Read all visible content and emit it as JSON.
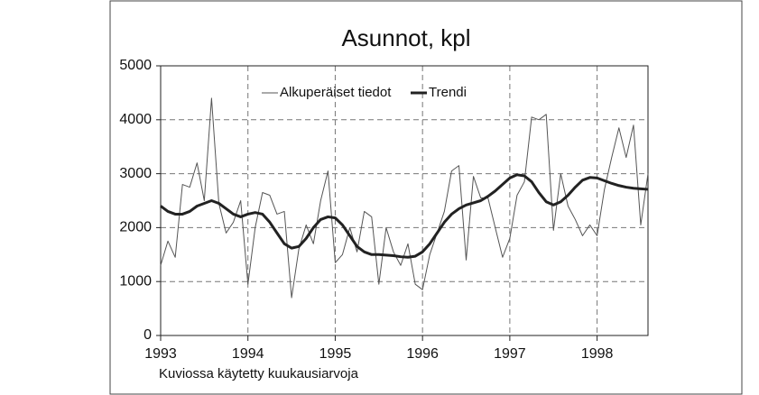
{
  "chart_data": {
    "type": "line",
    "title": "Asunnot, kpl",
    "note": "Kuviossa käytetty kuukausiarvoja",
    "x": [
      1993,
      1993.083,
      1993.167,
      1993.25,
      1993.333,
      1993.417,
      1993.5,
      1993.583,
      1993.667,
      1993.75,
      1993.833,
      1993.917,
      1994,
      1994.083,
      1994.167,
      1994.25,
      1994.333,
      1994.417,
      1994.5,
      1994.583,
      1994.667,
      1994.75,
      1994.833,
      1994.917,
      1995,
      1995.083,
      1995.167,
      1995.25,
      1995.333,
      1995.417,
      1995.5,
      1995.583,
      1995.667,
      1995.75,
      1995.833,
      1995.917,
      1996,
      1996.083,
      1996.167,
      1996.25,
      1996.333,
      1996.417,
      1996.5,
      1996.583,
      1996.667,
      1996.75,
      1996.833,
      1996.917,
      1997,
      1997.083,
      1997.167,
      1997.25,
      1997.333,
      1997.417,
      1997.5,
      1997.583,
      1997.667,
      1997.75,
      1997.833,
      1997.917,
      1998,
      1998.083,
      1998.167,
      1998.25,
      1998.333,
      1998.417,
      1998.5,
      1998.583
    ],
    "series": [
      {
        "name": "Alkuperäiset tiedot",
        "color": "#555555",
        "width": 1,
        "values": [
          1300,
          1750,
          1450,
          2800,
          2750,
          3200,
          2500,
          4400,
          2450,
          1900,
          2100,
          2500,
          950,
          2000,
          2650,
          2600,
          2250,
          2300,
          700,
          1600,
          2050,
          1700,
          2500,
          3050,
          1350,
          1500,
          2000,
          1550,
          2300,
          2200,
          950,
          2000,
          1550,
          1300,
          1700,
          950,
          850,
          1500,
          1900,
          2300,
          3050,
          3150,
          1400,
          2950,
          2550,
          2550,
          2000,
          1450,
          1800,
          2600,
          2850,
          4050,
          4000,
          4100,
          1950,
          3000,
          2400,
          2150,
          1850,
          2050,
          1850,
          2700,
          3300,
          3850,
          3300,
          3900,
          2050,
          3000
        ]
      },
      {
        "name": "Trendi",
        "color": "#222222",
        "width": 3,
        "values": [
          2400,
          2300,
          2250,
          2250,
          2300,
          2400,
          2450,
          2500,
          2450,
          2350,
          2250,
          2200,
          2250,
          2280,
          2250,
          2100,
          1900,
          1700,
          1620,
          1650,
          1800,
          2000,
          2150,
          2200,
          2180,
          2050,
          1850,
          1650,
          1550,
          1500,
          1500,
          1490,
          1480,
          1460,
          1450,
          1470,
          1550,
          1700,
          1900,
          2100,
          2250,
          2350,
          2420,
          2460,
          2500,
          2580,
          2680,
          2800,
          2920,
          2980,
          2960,
          2850,
          2650,
          2480,
          2420,
          2480,
          2600,
          2750,
          2880,
          2930,
          2920,
          2870,
          2820,
          2780,
          2750,
          2730,
          2720,
          2710
        ]
      }
    ],
    "xlim": [
      1993,
      1998.583
    ],
    "xticks": [
      1993,
      1994,
      1995,
      1996,
      1997,
      1998
    ],
    "ylim": [
      0,
      5000
    ],
    "yticks": [
      0,
      1000,
      2000,
      3000,
      4000,
      5000
    ],
    "grid": true
  }
}
